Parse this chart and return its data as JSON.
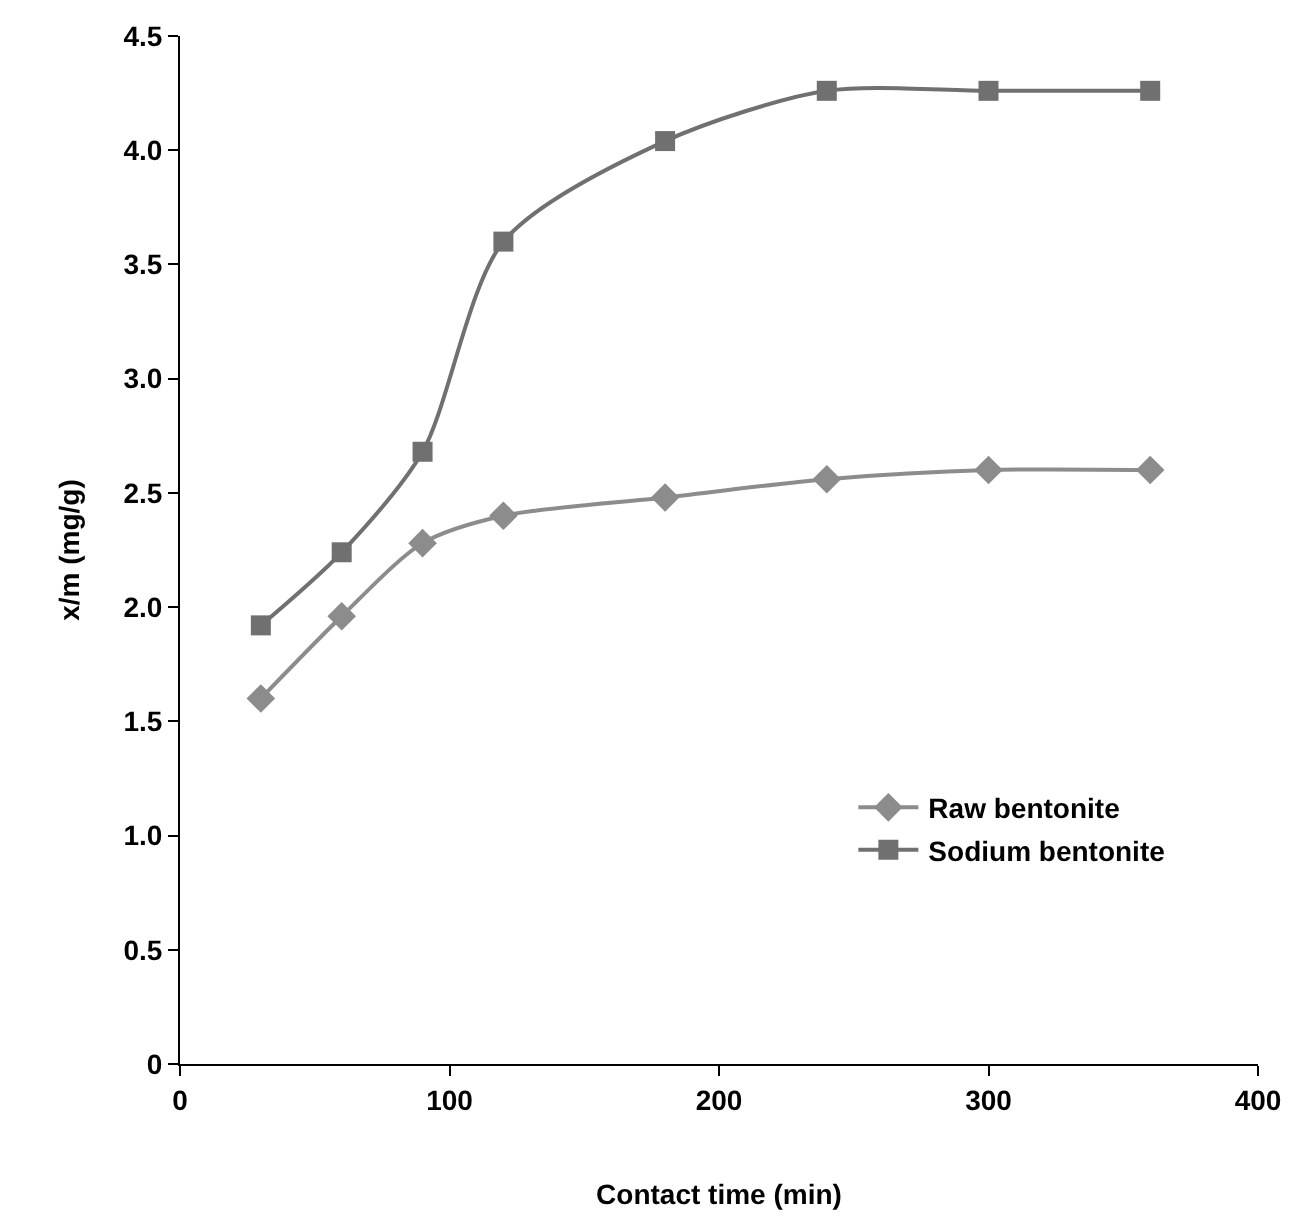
{
  "chart_data": {
    "type": "line",
    "xlabel": "Contact time (min)",
    "ylabel": "x/m (mg/g)",
    "x": [
      30,
      60,
      90,
      120,
      180,
      240,
      300,
      360
    ],
    "series": [
      {
        "name": "Raw bentonite",
        "color": "#8c8c8c",
        "marker": "diamond",
        "values": [
          1.6,
          1.96,
          2.28,
          2.4,
          2.48,
          2.56,
          2.6,
          2.6
        ]
      },
      {
        "name": "Sodium bentonite",
        "color": "#707070",
        "marker": "square",
        "values": [
          1.92,
          2.24,
          2.68,
          3.6,
          4.04,
          4.26,
          4.26,
          4.26
        ]
      }
    ],
    "xlim": [
      0,
      400
    ],
    "xticks": [
      0,
      100,
      200,
      300,
      400
    ],
    "ylim": [
      0,
      4.5
    ],
    "yticks": [
      {
        "value": 0,
        "label": "0"
      },
      {
        "value": 0.5,
        "label": "0.5"
      },
      {
        "value": 1,
        "label": "1.0"
      },
      {
        "value": 1.5,
        "label": "1.5"
      },
      {
        "value": 2,
        "label": "2.0"
      },
      {
        "value": 2.5,
        "label": "2.5"
      },
      {
        "value": 3,
        "label": "3.0"
      },
      {
        "value": 3.5,
        "label": "3.5"
      },
      {
        "value": 4,
        "label": "4.0"
      },
      {
        "value": 4.5,
        "label": "4.5"
      }
    ],
    "grid": false,
    "legend": "bottom right",
    "line_style": "solid"
  }
}
